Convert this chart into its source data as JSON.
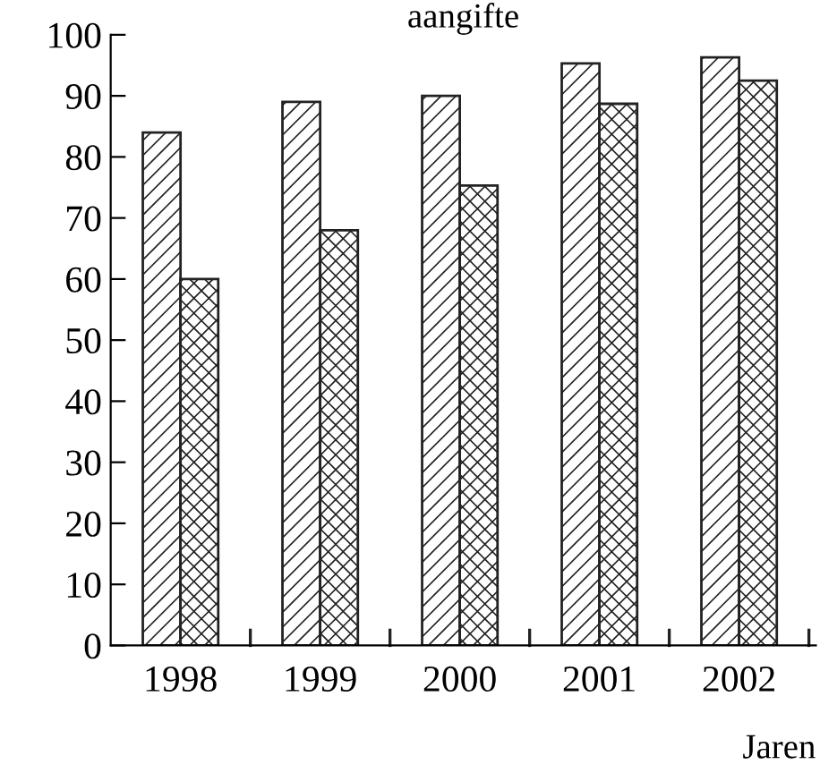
{
  "chart_data": {
    "type": "bar",
    "title": "aangifte",
    "xlabel": "Jaren",
    "categories": [
      "1998",
      "1999",
      "2000",
      "2001",
      "2002"
    ],
    "series": [
      {
        "color": "#222222",
        "values": [
          84,
          89,
          90,
          95.3,
          96.3
        ]
      },
      {
        "color": "#222222",
        "values": [
          60,
          68,
          75.3,
          88.7,
          92.5
        ]
      }
    ],
    "ylim": [
      0,
      100
    ],
    "yticks": [
      0,
      10,
      20,
      30,
      40,
      50,
      60,
      70,
      80,
      90,
      100
    ],
    "grid": false,
    "legend": false
  }
}
